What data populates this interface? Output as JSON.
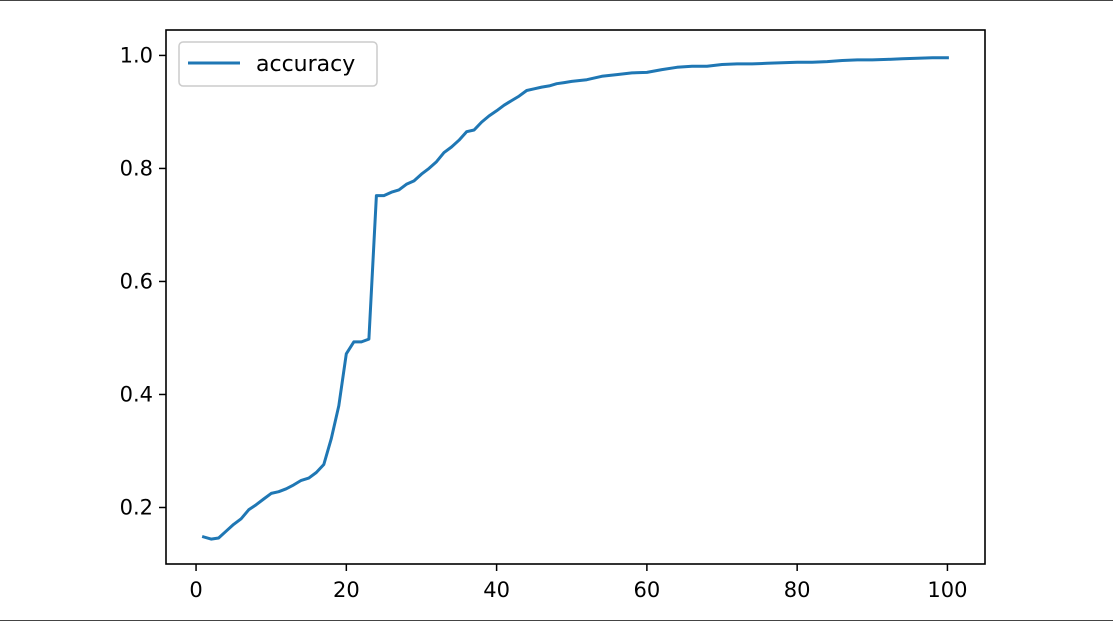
{
  "chart_data": {
    "type": "line",
    "xlim": [
      -4,
      105
    ],
    "ylim": [
      0.1,
      1.045
    ],
    "xticks": [
      0,
      20,
      40,
      60,
      80,
      100
    ],
    "yticks": [
      0.2,
      0.4,
      0.6,
      0.8,
      1.0
    ],
    "xtick_labels": [
      "0",
      "20",
      "40",
      "60",
      "80",
      "100"
    ],
    "ytick_labels": [
      "0.2",
      "0.4",
      "0.6",
      "0.8",
      "1.0"
    ],
    "legend_position": "top-left",
    "grid": false,
    "series": [
      {
        "name": "accuracy",
        "color": "#1f77b4",
        "points": [
          [
            1,
            0.148
          ],
          [
            2,
            0.144
          ],
          [
            3,
            0.146
          ],
          [
            4,
            0.158
          ],
          [
            5,
            0.17
          ],
          [
            6,
            0.18
          ],
          [
            7,
            0.196
          ],
          [
            8,
            0.205
          ],
          [
            9,
            0.215
          ],
          [
            10,
            0.225
          ],
          [
            11,
            0.228
          ],
          [
            12,
            0.233
          ],
          [
            13,
            0.24
          ],
          [
            14,
            0.248
          ],
          [
            15,
            0.252
          ],
          [
            16,
            0.262
          ],
          [
            17,
            0.276
          ],
          [
            18,
            0.322
          ],
          [
            19,
            0.38
          ],
          [
            20,
            0.472
          ],
          [
            21,
            0.493
          ],
          [
            22,
            0.493
          ],
          [
            23,
            0.498
          ],
          [
            24,
            0.752
          ],
          [
            25,
            0.752
          ],
          [
            26,
            0.758
          ],
          [
            27,
            0.762
          ],
          [
            28,
            0.772
          ],
          [
            29,
            0.778
          ],
          [
            30,
            0.79
          ],
          [
            31,
            0.8
          ],
          [
            32,
            0.812
          ],
          [
            33,
            0.828
          ],
          [
            34,
            0.838
          ],
          [
            35,
            0.85
          ],
          [
            36,
            0.865
          ],
          [
            37,
            0.868
          ],
          [
            38,
            0.882
          ],
          [
            39,
            0.893
          ],
          [
            40,
            0.902
          ],
          [
            41,
            0.912
          ],
          [
            42,
            0.92
          ],
          [
            43,
            0.928
          ],
          [
            44,
            0.938
          ],
          [
            45,
            0.941
          ],
          [
            46,
            0.944
          ],
          [
            47,
            0.946
          ],
          [
            48,
            0.95
          ],
          [
            49,
            0.952
          ],
          [
            50,
            0.954
          ],
          [
            52,
            0.957
          ],
          [
            54,
            0.963
          ],
          [
            56,
            0.966
          ],
          [
            58,
            0.969
          ],
          [
            60,
            0.97
          ],
          [
            62,
            0.975
          ],
          [
            64,
            0.979
          ],
          [
            66,
            0.981
          ],
          [
            68,
            0.981
          ],
          [
            70,
            0.984
          ],
          [
            72,
            0.985
          ],
          [
            74,
            0.985
          ],
          [
            76,
            0.986
          ],
          [
            78,
            0.987
          ],
          [
            80,
            0.988
          ],
          [
            82,
            0.988
          ],
          [
            84,
            0.989
          ],
          [
            86,
            0.991
          ],
          [
            88,
            0.992
          ],
          [
            90,
            0.992
          ],
          [
            92,
            0.993
          ],
          [
            94,
            0.994
          ],
          [
            96,
            0.995
          ],
          [
            98,
            0.996
          ],
          [
            100,
            0.996
          ]
        ]
      }
    ]
  }
}
